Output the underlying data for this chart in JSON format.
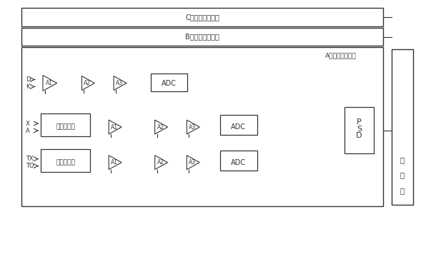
{
  "bg_color": "#ffffff",
  "line_color": "#333333",
  "box_fill": "#ffffff",
  "amp_fill": "#ffffff",
  "dotted_box_fill": "#f5f5f5",
  "title": "",
  "labels": {
    "TO": "TO",
    "TX": "TX",
    "A": "A",
    "X": "X",
    "K": "K",
    "D": "D",
    "current_sensor": "电流互感器",
    "voltage_sensor": "电压互感器",
    "ADC": "ADC",
    "DSP": "DSP",
    "display": "显示屏",
    "A_phase": "A相运算处理单元",
    "B_phase": "B相运算处理单元",
    "C_phase": "C相运算处理单元",
    "A1": "A1",
    "A2": "A2",
    "A3": "A3"
  }
}
